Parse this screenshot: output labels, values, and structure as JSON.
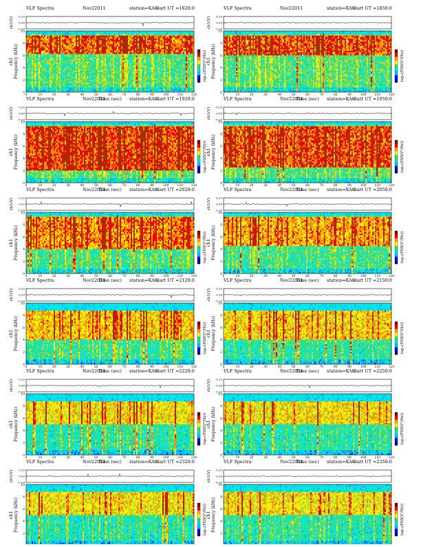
{
  "panel_text": {
    "title": "VLF Spectra",
    "date": "Nov22011",
    "station": "station=KAG",
    "start_prefix": "start",
    "ut_prefix": "UT =",
    "waveform_label": "ch1(V)",
    "freq_label_channel": "ch1",
    "freq_label": "Frequency (kHz)",
    "time_label": "Time (sec)",
    "colorbar_label": "log₁₀(PSD(V²/Hz))"
  },
  "colors": {
    "spectrogram": [
      "#000077",
      "#0033ff",
      "#00aaff",
      "#00e5e5",
      "#33dd77",
      "#aadd33",
      "#ffee00",
      "#ff8800",
      "#ee0000",
      "#993300"
    ],
    "colorbar": [
      "#000080",
      "#0000ff",
      "#00bfff",
      "#00e5e5",
      "#33dd66",
      "#ffff00",
      "#ffa500",
      "#ff0000",
      "#8b0000"
    ],
    "waveform": "#000000"
  },
  "chart_data": [
    {
      "type": "heatmap",
      "title": "VLF Spectra",
      "date": "Nov22011",
      "station": "KAG",
      "start_ut": "1820:0",
      "xlabel": "Time (sec)",
      "ylabel": "Frequency (kHz)",
      "colorbar_label": "log10(PSD(V^2/Hz))",
      "xlim": [
        0,
        120
      ],
      "ylim": [
        0,
        10
      ],
      "x_ticks": [
        0,
        10,
        20,
        30,
        40,
        50,
        60,
        70,
        80,
        90,
        100,
        110,
        120
      ],
      "y_ticks": [
        0,
        2,
        4,
        6,
        8,
        10
      ],
      "wave_ticks": [
        "0.20",
        "0.00",
        "-0.20"
      ],
      "wave_ylim": [
        -0.2,
        0.2
      ],
      "cutoff_khz": 9.5,
      "band_khz": [
        6.2,
        9.3
      ],
      "activity": 0.85
    },
    {
      "type": "heatmap",
      "title": "VLF Spectra",
      "date": "Nov22011",
      "station": "KAG",
      "start_ut": "1850:0",
      "xlabel": "Time (sec)",
      "ylabel": "Frequency (kHz)",
      "colorbar_label": "log10(PSD(V^2/Hz))",
      "xlim": [
        0,
        120
      ],
      "ylim": [
        0,
        10
      ],
      "x_ticks": [
        0,
        10,
        20,
        30,
        40,
        50,
        60,
        70,
        80,
        90,
        100,
        110,
        120
      ],
      "y_ticks": [
        0,
        2,
        4,
        6,
        8,
        10
      ],
      "wave_ticks": [
        "0.20",
        "0.00",
        "-0.20"
      ],
      "wave_ylim": [
        -0.2,
        0.2
      ],
      "cutoff_khz": 9.5,
      "band_khz": [
        6.0,
        9.3
      ],
      "activity": 0.9
    },
    {
      "type": "heatmap",
      "title": "VLF Spectra",
      "date": "Nov22011",
      "station": "KAG",
      "start_ut": "1920:0",
      "xlabel": "Time (sec)",
      "ylabel": "Frequency (kHz)",
      "colorbar_label": "log10(PSD(V^2/Hz))",
      "xlim": [
        0,
        120
      ],
      "ylim": [
        0,
        10
      ],
      "x_ticks": [
        0,
        10,
        20,
        30,
        40,
        50,
        60,
        70,
        80,
        90,
        100,
        110,
        120
      ],
      "y_ticks": [
        0,
        2,
        4,
        6,
        8,
        10
      ],
      "wave_ticks": [
        "0.20",
        "0.00",
        "-0.20"
      ],
      "wave_ylim": [
        -0.2,
        0.2
      ],
      "cutoff_khz": 9.5,
      "band_khz": [
        2.0,
        9.3
      ],
      "activity": 0.95
    },
    {
      "type": "heatmap",
      "title": "VLF Spectra",
      "date": "Nov22011",
      "station": "KAG",
      "start_ut": "1950:0",
      "xlabel": "Time (sec)",
      "ylabel": "Frequency (kHz)",
      "colorbar_label": "log10(PSD(V^2/Hz))",
      "xlim": [
        0,
        120
      ],
      "ylim": [
        0,
        10
      ],
      "x_ticks": [
        0,
        10,
        20,
        30,
        40,
        50,
        60,
        70,
        80,
        90,
        100,
        110,
        120
      ],
      "y_ticks": [
        0,
        2,
        4,
        6,
        8,
        10
      ],
      "wave_ticks": [
        "0.20",
        "0.00",
        "-0.20"
      ],
      "wave_ylim": [
        -0.2,
        0.2
      ],
      "cutoff_khz": 9.5,
      "band_khz": [
        2.5,
        9.3
      ],
      "activity": 0.9
    },
    {
      "type": "heatmap",
      "title": "VLF Spectra",
      "date": "Nov22011",
      "station": "KAG",
      "start_ut": "2020:0",
      "xlabel": "Time (sec)",
      "ylabel": "Frequency (kHz)",
      "colorbar_label": "log10(PSD(V^2/Hz))",
      "xlim": [
        0,
        120
      ],
      "ylim": [
        0,
        10
      ],
      "x_ticks": [
        0,
        10,
        20,
        30,
        40,
        50,
        60,
        70,
        80,
        90,
        100,
        110,
        120
      ],
      "y_ticks": [
        0,
        2,
        4,
        6,
        8,
        10
      ],
      "wave_ticks": [
        "0.20",
        "0.00",
        "-0.20"
      ],
      "wave_ylim": [
        -0.2,
        0.2
      ],
      "cutoff_khz": 9.5,
      "band_khz": [
        4.0,
        9.3
      ],
      "activity": 0.7
    },
    {
      "type": "heatmap",
      "title": "VLF Spectra",
      "date": "Nov22011",
      "station": "KAG",
      "start_ut": "2050:0",
      "xlabel": "Time (sec)",
      "ylabel": "Frequency (kHz)",
      "colorbar_label": "log10(PSD(V^2/Hz))",
      "xlim": [
        0,
        120
      ],
      "ylim": [
        0,
        10
      ],
      "x_ticks": [
        0,
        10,
        20,
        30,
        40,
        50,
        60,
        70,
        80,
        90,
        100,
        110,
        120
      ],
      "y_ticks": [
        0,
        2,
        4,
        6,
        8,
        10
      ],
      "wave_ticks": [
        "0.20",
        "0.00",
        "-0.20"
      ],
      "wave_ylim": [
        -0.2,
        0.2
      ],
      "cutoff_khz": 9.5,
      "band_khz": [
        4.5,
        9.3
      ],
      "activity": 0.6
    },
    {
      "type": "heatmap",
      "title": "VLF Spectra",
      "date": "Nov22011",
      "station": "KAG",
      "start_ut": "2120:0",
      "xlabel": "Time (sec)",
      "ylabel": "Frequency (kHz)",
      "colorbar_label": "log10(PSD(V^2/Hz))",
      "xlim": [
        0,
        120
      ],
      "ylim": [
        0,
        10
      ],
      "x_ticks": [
        0,
        10,
        20,
        30,
        40,
        50,
        60,
        70,
        80,
        90,
        100,
        110,
        120
      ],
      "y_ticks": [
        0,
        2,
        4,
        6,
        8,
        10
      ],
      "wave_ticks": [
        "0.20",
        "0.00",
        "-0.20"
      ],
      "wave_ylim": [
        -0.2,
        0.2
      ],
      "cutoff_khz": 8.8,
      "band_khz": [
        4.0,
        8.7
      ],
      "activity": 0.45
    },
    {
      "type": "heatmap",
      "title": "VLF Spectra",
      "date": "Nov22011",
      "station": "KAG",
      "start_ut": "2150:0",
      "xlabel": "Time (sec)",
      "ylabel": "Frequency (kHz)",
      "colorbar_label": "log10(PSD(V^2/Hz))",
      "xlim": [
        0,
        120
      ],
      "ylim": [
        0,
        10
      ],
      "x_ticks": [
        0,
        10,
        20,
        30,
        40,
        50,
        60,
        70,
        80,
        90,
        100,
        110,
        120
      ],
      "y_ticks": [
        0,
        2,
        4,
        6,
        8,
        10
      ],
      "wave_ticks": [
        "0.20",
        "0.00",
        "-0.20"
      ],
      "wave_ylim": [
        -0.2,
        0.2
      ],
      "cutoff_khz": 8.8,
      "band_khz": [
        4.0,
        8.7
      ],
      "activity": 0.4
    },
    {
      "type": "heatmap",
      "title": "VLF Spectra",
      "date": "Nov22011",
      "station": "KAG",
      "start_ut": "2220:0",
      "xlabel": "Time (sec)",
      "ylabel": "Frequency (kHz)",
      "colorbar_label": "log10(PSD(V^2/Hz))",
      "xlim": [
        0,
        120
      ],
      "ylim": [
        0,
        10
      ],
      "x_ticks": [
        0,
        10,
        20,
        30,
        40,
        50,
        60,
        70,
        80,
        90,
        100,
        110,
        120
      ],
      "y_ticks": [
        0,
        2,
        4,
        6,
        8,
        10
      ],
      "wave_ticks": [
        "0.20",
        "0.00",
        "-0.20"
      ],
      "wave_ylim": [
        -0.2,
        0.2
      ],
      "cutoff_khz": 8.8,
      "band_khz": [
        5.0,
        8.7
      ],
      "activity": 0.3
    },
    {
      "type": "heatmap",
      "title": "VLF Spectra",
      "date": "Nov22011",
      "station": "KAG",
      "start_ut": "2250:0",
      "xlabel": "Time (sec)",
      "ylabel": "Frequency (kHz)",
      "colorbar_label": "log10(PSD(V^2/Hz))",
      "xlim": [
        0,
        120
      ],
      "ylim": [
        0,
        10
      ],
      "x_ticks": [
        0,
        10,
        20,
        30,
        40,
        50,
        60,
        70,
        80,
        90,
        100,
        110,
        120
      ],
      "y_ticks": [
        0,
        2,
        4,
        6,
        8,
        10
      ],
      "wave_ticks": [
        "0.20",
        "0.00",
        "-0.20"
      ],
      "wave_ylim": [
        -0.2,
        0.2
      ],
      "cutoff_khz": 8.8,
      "band_khz": [
        5.0,
        8.7
      ],
      "activity": 0.3
    },
    {
      "type": "heatmap",
      "title": "VLF Spectra",
      "date": "Nov22011",
      "station": "KAG",
      "start_ut": "2320:0",
      "xlabel": "Time (sec)",
      "ylabel": "Frequency (kHz)",
      "colorbar_label": "log10(PSD(V^2/Hz))",
      "xlim": [
        0,
        120
      ],
      "ylim": [
        0,
        10
      ],
      "x_ticks": [
        0,
        10,
        20,
        30,
        40,
        50,
        60,
        70,
        80,
        90,
        100,
        110,
        120
      ],
      "y_ticks": [
        0,
        2,
        4,
        6,
        8,
        10
      ],
      "wave_ticks": [
        "0.20",
        "0.00",
        "-0.20"
      ],
      "wave_ylim": [
        -0.2,
        0.2
      ],
      "cutoff_khz": 9.0,
      "band_khz": [
        5.0,
        8.8
      ],
      "activity": 0.25
    },
    {
      "type": "heatmap",
      "title": "VLF Spectra",
      "date": "Nov22011",
      "station": "KAG",
      "start_ut": "2350:0",
      "xlabel": "Time (sec)",
      "ylabel": "Frequency (kHz)",
      "colorbar_label": "log10(PSD(V^2/Hz))",
      "xlim": [
        0,
        120
      ],
      "ylim": [
        0,
        10
      ],
      "x_ticks": [
        0,
        10,
        20,
        30,
        40,
        50,
        60,
        70,
        80,
        90,
        100,
        110,
        120
      ],
      "y_ticks": [
        0,
        2,
        4,
        6,
        8,
        10
      ],
      "wave_ticks": [
        "0.20",
        "0.00",
        "-0.20"
      ],
      "wave_ylim": [
        -0.2,
        0.2
      ],
      "cutoff_khz": 9.0,
      "band_khz": [
        5.0,
        8.8
      ],
      "activity": 0.25
    }
  ]
}
